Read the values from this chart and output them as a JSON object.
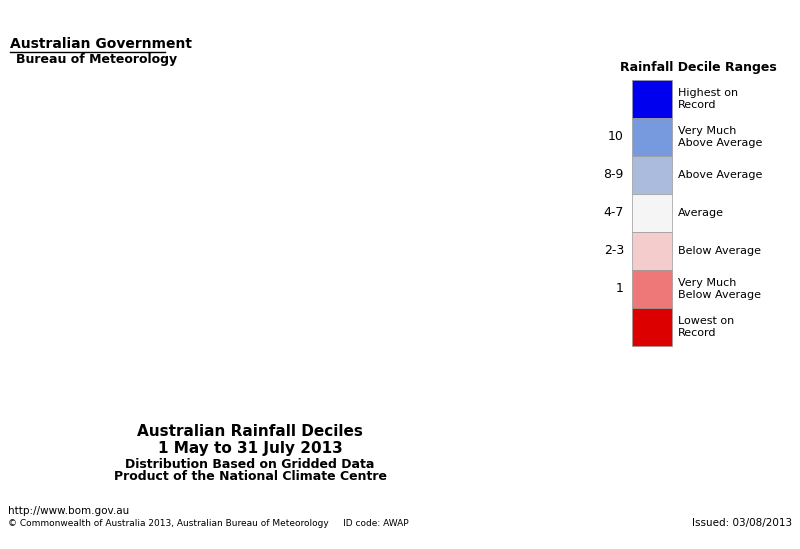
{
  "title_line1": "Australian Rainfall Deciles",
  "title_line2": "1 May to 31 July 2013",
  "title_line3": "Distribution Based on Gridded Data",
  "title_line4": "Product of the National Climate Centre",
  "legend_title": "Rainfall Decile Ranges",
  "legend_entries": [
    {
      "label": "Highest on\nRecord",
      "color": "#0000ee",
      "decile": ""
    },
    {
      "label": "Very Much\nAbove Average",
      "color": "#7799dd",
      "decile": "10"
    },
    {
      "label": "Above Average",
      "color": "#aabbdd",
      "decile": "8-9"
    },
    {
      "label": "Average",
      "color": "#f5f5f5",
      "decile": "4-7"
    },
    {
      "label": "Below Average",
      "color": "#f5cccc",
      "decile": "2-3"
    },
    {
      "label": "Very Much\nBelow Average",
      "color": "#ee7777",
      "decile": "1"
    },
    {
      "label": "Lowest on\nRecord",
      "color": "#dd0000",
      "decile": ""
    }
  ],
  "footer_left": "http://www.bom.gov.au",
  "footer_copy": "© Commonwealth of Australia 2013, Australian Bureau of Meteorology     ID code: AWAP",
  "footer_right": "Issued: 03/08/2013",
  "header_line1": "Australian Government",
  "header_line2": "Bureau of Meteorology",
  "bg_color": "#ffffff"
}
